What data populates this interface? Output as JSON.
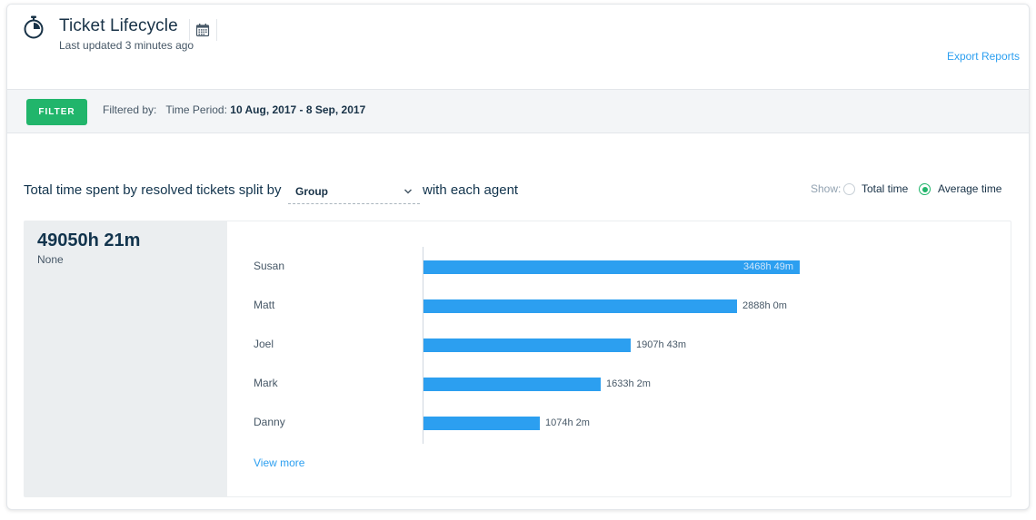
{
  "header": {
    "title": "Ticket Lifecycle",
    "subtitle": "Last updated 3 minutes ago",
    "export_label": "Export Reports",
    "icons": {
      "app": "stopwatch-icon",
      "calendar": "calendar-icon"
    }
  },
  "filter_bar": {
    "button_label": "FILTER",
    "filtered_by_label": "Filtered by:",
    "time_period_label": "Time Period:",
    "time_period_value": "10 Aug, 2017 - 8 Sep, 2017"
  },
  "split": {
    "prefix": "Total time spent by resolved tickets split by",
    "selected": "Group",
    "suffix": "with each agent"
  },
  "show": {
    "label": "Show:",
    "options": [
      {
        "label": "Total time",
        "selected": false
      },
      {
        "label": "Average time",
        "selected": true
      }
    ]
  },
  "summary": {
    "total": "49050h 21m",
    "group": "None"
  },
  "colors": {
    "accent_green": "#21b56b",
    "bar_blue": "#2c9ff0",
    "link_blue": "#2c9ff0"
  },
  "chart_data": {
    "type": "bar",
    "orientation": "horizontal",
    "categories": [
      "Susan",
      "Matt",
      "Joel",
      "Mark",
      "Danny"
    ],
    "values": [
      3468.8167,
      2888,
      1907.7167,
      1633.0333,
      1074.0333
    ],
    "data_labels": [
      "3468h 49m",
      "2888h 0m",
      "1907h 43m",
      "1633h 2m",
      "1074h 2m"
    ],
    "unit": "hours"
  },
  "view_more_label": "View more"
}
